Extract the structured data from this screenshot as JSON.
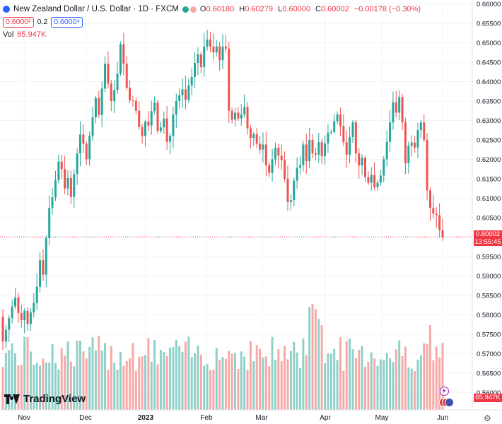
{
  "header": {
    "symbol": "New Zealand Dollar / U.S. Dollar · 1D · FXCM",
    "open_label": "O",
    "open": "0.60180",
    "high_label": "H",
    "high": "0.60279",
    "low_label": "L",
    "low": "0.60000",
    "close_label": "C",
    "close": "0.60002",
    "change": "−0.00178 (−0.30%)",
    "bid": "0.6000²",
    "spread": "0.2",
    "ask": "0.6000⁴",
    "vol_label": "Vol",
    "vol_value": "65.947K"
  },
  "branding": {
    "logo_text": "TradingView"
  },
  "price_axis": {
    "labels": [
      "0.66000",
      "0.65500",
      "0.65000",
      "0.64500",
      "0.64000",
      "0.63500",
      "0.63000",
      "0.62500",
      "0.62000",
      "0.61500",
      "0.61000",
      "0.60500",
      "0.60000",
      "0.59500",
      "0.59000",
      "0.58500",
      "0.58000",
      "0.57500",
      "0.57000",
      "0.56500",
      "0.56000"
    ],
    "last_price_tag": "0.60002",
    "countdown": "13:55:45",
    "volume_tag": "65.947K"
  },
  "time_axis": {
    "labels": [
      "Nov",
      "Dec",
      "2023",
      "Feb",
      "Mar",
      "Apr",
      "May",
      "Jun"
    ]
  },
  "colors": {
    "up": "#26a69a",
    "down": "#ef5350",
    "up_vol": "#8fd0c9",
    "down_vol": "#f7a9a7",
    "last_line": "#f23645"
  },
  "icons": [
    "tradingview-logo-icon",
    "lightning-icon",
    "flag-icon",
    "settings-gear-icon"
  ],
  "chart_data": {
    "type": "candlestick",
    "title": "New Zealand Dollar / U.S. Dollar · 1D · FXCM",
    "ylim": [
      0.555,
      0.661
    ],
    "ohlc_series": [
      {
        "o": 0.5795,
        "c": 0.5731
      },
      {
        "o": 0.5731,
        "c": 0.5761
      },
      {
        "o": 0.5761,
        "c": 0.5791
      },
      {
        "o": 0.5791,
        "c": 0.5821
      },
      {
        "o": 0.5821,
        "c": 0.5844
      },
      {
        "o": 0.5844,
        "c": 0.5804
      },
      {
        "o": 0.5804,
        "c": 0.5786
      },
      {
        "o": 0.5786,
        "c": 0.581
      },
      {
        "o": 0.581,
        "c": 0.5776
      },
      {
        "o": 0.5776,
        "c": 0.5806
      },
      {
        "o": 0.5806,
        "c": 0.583
      },
      {
        "o": 0.583,
        "c": 0.5872
      },
      {
        "o": 0.5872,
        "c": 0.594
      },
      {
        "o": 0.594,
        "c": 0.5903
      },
      {
        "o": 0.5903,
        "c": 0.5997
      },
      {
        "o": 0.5997,
        "c": 0.6075
      },
      {
        "o": 0.6075,
        "c": 0.6102
      },
      {
        "o": 0.6102,
        "c": 0.6146
      },
      {
        "o": 0.6146,
        "c": 0.6194
      },
      {
        "o": 0.6194,
        "c": 0.6175
      },
      {
        "o": 0.6175,
        "c": 0.6125
      },
      {
        "o": 0.6125,
        "c": 0.6152
      },
      {
        "o": 0.6152,
        "c": 0.6103
      },
      {
        "o": 0.6103,
        "c": 0.6162
      },
      {
        "o": 0.6162,
        "c": 0.6215
      },
      {
        "o": 0.6215,
        "c": 0.6264
      },
      {
        "o": 0.6264,
        "c": 0.624
      },
      {
        "o": 0.624,
        "c": 0.62
      },
      {
        "o": 0.62,
        "c": 0.626
      },
      {
        "o": 0.626,
        "c": 0.6308
      },
      {
        "o": 0.6308,
        "c": 0.6358
      },
      {
        "o": 0.6358,
        "c": 0.6314
      },
      {
        "o": 0.6314,
        "c": 0.6382
      },
      {
        "o": 0.6382,
        "c": 0.6446
      },
      {
        "o": 0.6446,
        "c": 0.6395
      },
      {
        "o": 0.6395,
        "c": 0.635
      },
      {
        "o": 0.635,
        "c": 0.6378
      },
      {
        "o": 0.6378,
        "c": 0.642
      },
      {
        "o": 0.642,
        "c": 0.6496
      },
      {
        "o": 0.6496,
        "c": 0.6446
      },
      {
        "o": 0.6446,
        "c": 0.6384
      },
      {
        "o": 0.6384,
        "c": 0.6352
      },
      {
        "o": 0.6352,
        "c": 0.635
      },
      {
        "o": 0.635,
        "c": 0.6325
      },
      {
        "o": 0.6325,
        "c": 0.6283
      },
      {
        "o": 0.6283,
        "c": 0.626
      },
      {
        "o": 0.626,
        "c": 0.6297
      },
      {
        "o": 0.6297,
        "c": 0.6287
      },
      {
        "o": 0.6287,
        "c": 0.6324
      },
      {
        "o": 0.6324,
        "c": 0.6346
      },
      {
        "o": 0.6346,
        "c": 0.6273
      },
      {
        "o": 0.6273,
        "c": 0.6282
      },
      {
        "o": 0.6282,
        "c": 0.6305
      },
      {
        "o": 0.6305,
        "c": 0.6245
      },
      {
        "o": 0.6245,
        "c": 0.626
      },
      {
        "o": 0.626,
        "c": 0.6315
      },
      {
        "o": 0.6315,
        "c": 0.635
      },
      {
        "o": 0.635,
        "c": 0.6365
      },
      {
        "o": 0.6365,
        "c": 0.638
      },
      {
        "o": 0.638,
        "c": 0.6353
      },
      {
        "o": 0.6353,
        "c": 0.639
      },
      {
        "o": 0.639,
        "c": 0.6412
      },
      {
        "o": 0.6412,
        "c": 0.6448
      },
      {
        "o": 0.6448,
        "c": 0.647
      },
      {
        "o": 0.647,
        "c": 0.6437
      },
      {
        "o": 0.6437,
        "c": 0.649
      },
      {
        "o": 0.649,
        "c": 0.6508
      },
      {
        "o": 0.6508,
        "c": 0.649
      },
      {
        "o": 0.649,
        "c": 0.6475
      },
      {
        "o": 0.6475,
        "c": 0.6491
      },
      {
        "o": 0.6491,
        "c": 0.6455
      },
      {
        "o": 0.6455,
        "c": 0.649
      },
      {
        "o": 0.649,
        "c": 0.6485
      },
      {
        "o": 0.6485,
        "c": 0.6325
      },
      {
        "o": 0.6325,
        "c": 0.6302
      },
      {
        "o": 0.6302,
        "c": 0.632
      },
      {
        "o": 0.632,
        "c": 0.6305
      },
      {
        "o": 0.6305,
        "c": 0.6315
      },
      {
        "o": 0.6315,
        "c": 0.6335
      },
      {
        "o": 0.6335,
        "c": 0.628
      },
      {
        "o": 0.628,
        "c": 0.6255
      },
      {
        "o": 0.6255,
        "c": 0.6265
      },
      {
        "o": 0.6265,
        "c": 0.624
      },
      {
        "o": 0.624,
        "c": 0.6225
      },
      {
        "o": 0.6225,
        "c": 0.6238
      },
      {
        "o": 0.6238,
        "c": 0.6185
      },
      {
        "o": 0.6185,
        "c": 0.6165
      },
      {
        "o": 0.6165,
        "c": 0.62
      },
      {
        "o": 0.62,
        "c": 0.623
      },
      {
        "o": 0.623,
        "c": 0.6209
      },
      {
        "o": 0.6209,
        "c": 0.6198
      },
      {
        "o": 0.6198,
        "c": 0.615
      },
      {
        "o": 0.615,
        "c": 0.609
      },
      {
        "o": 0.609,
        "c": 0.6095
      },
      {
        "o": 0.6095,
        "c": 0.6145
      },
      {
        "o": 0.6145,
        "c": 0.6178
      },
      {
        "o": 0.6178,
        "c": 0.6185
      },
      {
        "o": 0.6185,
        "c": 0.6238
      },
      {
        "o": 0.6238,
        "c": 0.6195
      },
      {
        "o": 0.6195,
        "c": 0.625
      },
      {
        "o": 0.625,
        "c": 0.6215
      },
      {
        "o": 0.6215,
        "c": 0.6212
      },
      {
        "o": 0.6212,
        "c": 0.6244
      },
      {
        "o": 0.6244,
        "c": 0.6208
      },
      {
        "o": 0.6208,
        "c": 0.6241
      },
      {
        "o": 0.6241,
        "c": 0.6268
      },
      {
        "o": 0.6268,
        "c": 0.627
      },
      {
        "o": 0.627,
        "c": 0.6298
      },
      {
        "o": 0.6298,
        "c": 0.6315
      },
      {
        "o": 0.6315,
        "c": 0.6285
      },
      {
        "o": 0.6285,
        "c": 0.6244
      },
      {
        "o": 0.6244,
        "c": 0.6212
      },
      {
        "o": 0.6212,
        "c": 0.6257
      },
      {
        "o": 0.6257,
        "c": 0.6295
      },
      {
        "o": 0.6295,
        "c": 0.6215
      },
      {
        "o": 0.6215,
        "c": 0.6184
      },
      {
        "o": 0.6184,
        "c": 0.6204
      },
      {
        "o": 0.6204,
        "c": 0.6154
      },
      {
        "o": 0.6154,
        "c": 0.614
      },
      {
        "o": 0.614,
        "c": 0.616
      },
      {
        "o": 0.616,
        "c": 0.6128
      },
      {
        "o": 0.6128,
        "c": 0.614
      },
      {
        "o": 0.614,
        "c": 0.6158
      },
      {
        "o": 0.6158,
        "c": 0.62
      },
      {
        "o": 0.62,
        "c": 0.6245
      },
      {
        "o": 0.6245,
        "c": 0.6295
      },
      {
        "o": 0.6295,
        "c": 0.6347
      },
      {
        "o": 0.6347,
        "c": 0.632
      },
      {
        "o": 0.632,
        "c": 0.636
      },
      {
        "o": 0.636,
        "c": 0.6295
      },
      {
        "o": 0.6295,
        "c": 0.619
      },
      {
        "o": 0.619,
        "c": 0.6235
      },
      {
        "o": 0.6235,
        "c": 0.6243
      },
      {
        "o": 0.6243,
        "c": 0.623
      },
      {
        "o": 0.623,
        "c": 0.6275
      },
      {
        "o": 0.6275,
        "c": 0.6295
      },
      {
        "o": 0.6295,
        "c": 0.625
      },
      {
        "o": 0.625,
        "c": 0.612
      },
      {
        "o": 0.612,
        "c": 0.6075
      },
      {
        "o": 0.6075,
        "c": 0.606
      },
      {
        "o": 0.606,
        "c": 0.6056
      },
      {
        "o": 0.6056,
        "c": 0.6018
      },
      {
        "o": 0.6018,
        "c": 0.6
      }
    ],
    "volume_ylim": [
      0,
      95000
    ]
  }
}
